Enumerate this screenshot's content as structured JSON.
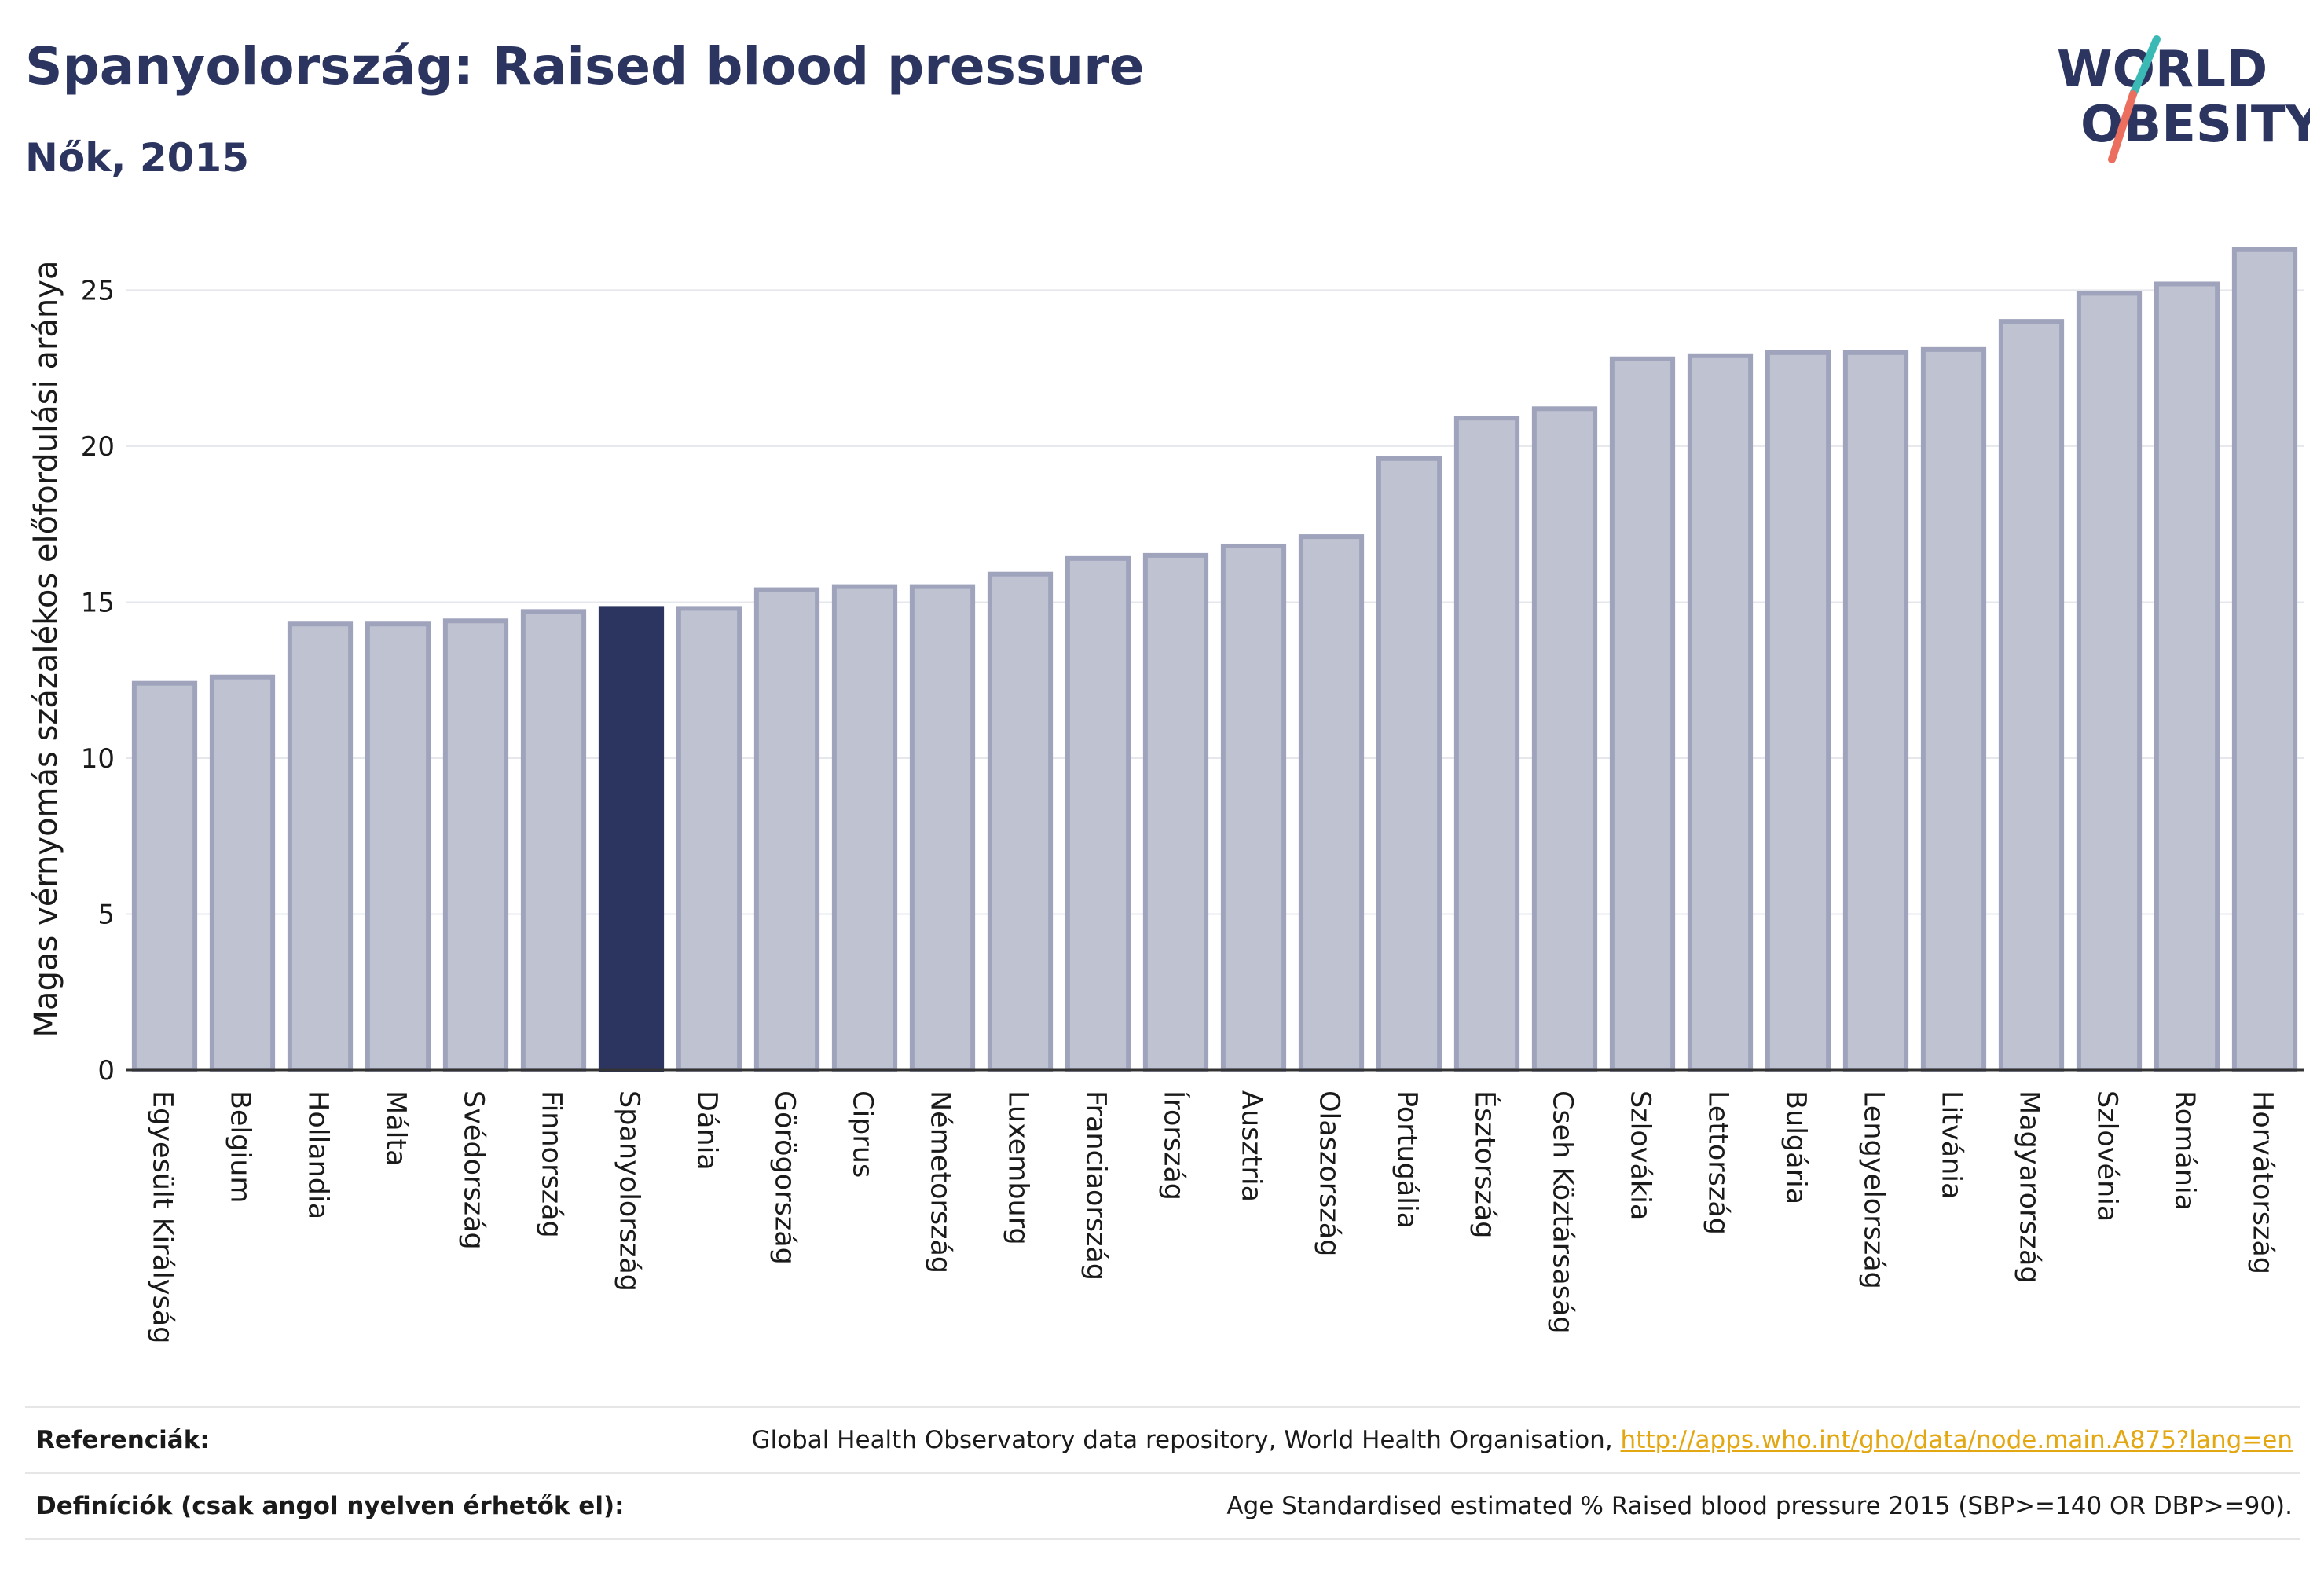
{
  "header": {
    "title": "Spanyolország: Raised blood pressure",
    "subtitle": "Nők, 2015"
  },
  "logo": {
    "line1": "WORLD",
    "line2": "OBESITY"
  },
  "colors": {
    "bar_default": "#bfc2d0",
    "bar_border": "#9fa4bc",
    "bar_highlight": "#2b3560",
    "text_dark": "#2b3560",
    "link": "#e3a712",
    "logo_teal": "#3bb9b4",
    "logo_coral": "#ec6e5e"
  },
  "chart_data": {
    "type": "bar",
    "ylabel": "Magas vérnyomás százalékos előfordulási aránya",
    "ylim": [
      0,
      27
    ],
    "yticks": [
      0,
      5,
      10,
      15,
      20,
      25
    ],
    "grid": true,
    "highlight": "Spanyolország",
    "categories": [
      "Egyesült Királyság",
      "Belgium",
      "Hollandia",
      "Málta",
      "Svédország",
      "Finnország",
      "Spanyolország",
      "Dánia",
      "Görögország",
      "Ciprus",
      "Németország",
      "Luxemburg",
      "Franciaország",
      "Írország",
      "Ausztria",
      "Olaszország",
      "Portugália",
      "Észtország",
      "Cseh Köztársaság",
      "Szlovákia",
      "Lettország",
      "Bulgária",
      "Lengyelország",
      "Litvánia",
      "Magyarország",
      "Szlovénia",
      "Románia",
      "Horvátország"
    ],
    "values": [
      12.4,
      12.6,
      14.3,
      14.3,
      14.4,
      14.7,
      14.8,
      14.8,
      15.4,
      15.5,
      15.5,
      15.9,
      16.4,
      16.5,
      16.8,
      17.1,
      19.6,
      20.9,
      21.2,
      22.8,
      22.9,
      23.0,
      23.0,
      23.1,
      24.0,
      24.9,
      25.2,
      26.3
    ]
  },
  "references": {
    "ref_label": "Referenciák:",
    "ref_text": "Global Health Observatory data repository, World Health Organisation,",
    "ref_link": "http://apps.who.int/gho/data/node.main.A875?lang=en",
    "def_label": "Definíciók (csak angol nyelven érhetők el):",
    "def_text": "Age Standardised estimated % Raised blood pressure 2015 (SBP>=140 OR DBP>=90)."
  }
}
